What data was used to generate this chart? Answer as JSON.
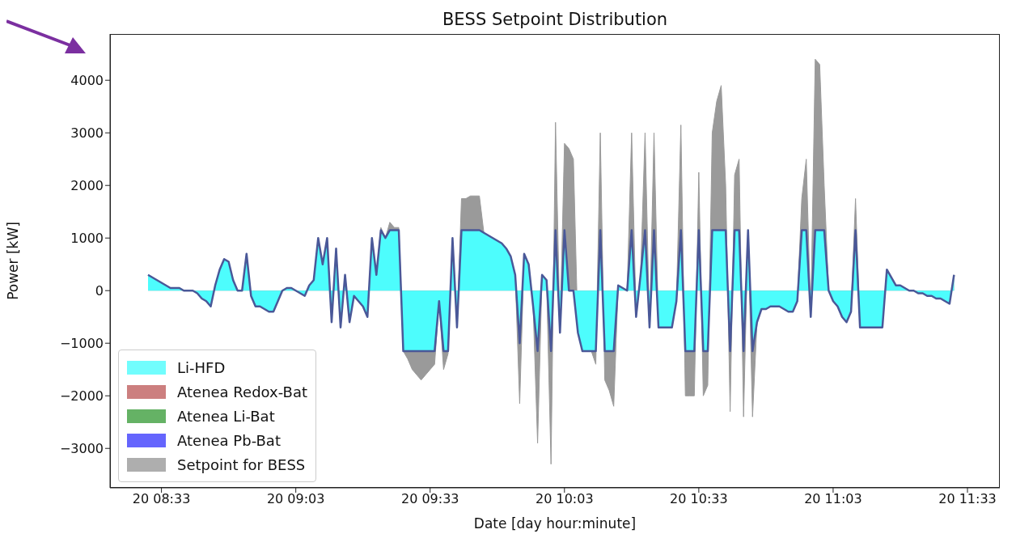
{
  "chart_data": {
    "type": "area",
    "title": "BESS Setpoint Distribution",
    "xlabel": "Date [day hour:minute]",
    "ylabel": "Power [kW]",
    "categories": [
      null,
      null,
      null,
      "20 08:33",
      null,
      null,
      null,
      null,
      null,
      null,
      null,
      null,
      null,
      null,
      null,
      null,
      null,
      null,
      null,
      null,
      null,
      null,
      null,
      null,
      null,
      null,
      null,
      null,
      null,
      null,
      null,
      null,
      null,
      "20 09:03",
      null,
      null,
      null,
      null,
      null,
      null,
      null,
      null,
      null,
      null,
      null,
      null,
      null,
      null,
      null,
      null,
      null,
      null,
      null,
      null,
      null,
      null,
      null,
      null,
      null,
      null,
      null,
      null,
      null,
      "20 09:33",
      null,
      null,
      null,
      null,
      null,
      null,
      null,
      null,
      null,
      null,
      null,
      null,
      null,
      null,
      null,
      null,
      null,
      null,
      null,
      null,
      null,
      null,
      null,
      null,
      null,
      null,
      null,
      null,
      null,
      "20 10:03",
      null,
      null,
      null,
      null,
      null,
      null,
      null,
      null,
      null,
      null,
      null,
      null,
      null,
      null,
      null,
      null,
      null,
      null,
      null,
      null,
      null,
      null,
      null,
      null,
      null,
      null,
      null,
      null,
      null,
      "20 10:33",
      null,
      null,
      null,
      null,
      null,
      null,
      null,
      null,
      null,
      null,
      null,
      null,
      null,
      null,
      null,
      null,
      null,
      null,
      null,
      null,
      null,
      null,
      null,
      null,
      null,
      null,
      null,
      null,
      null,
      "20 11:03",
      null,
      null,
      null,
      null,
      null,
      null,
      null,
      null,
      null,
      null,
      null,
      null,
      null,
      null,
      null,
      null,
      null,
      null,
      null,
      null,
      null,
      null,
      null,
      null,
      null,
      null,
      null,
      null,
      null,
      "20 11:33"
    ],
    "series": [
      {
        "name": "Li-HFD",
        "color": "#4dfdfd",
        "values": [
          300,
          250,
          200,
          150,
          100,
          50,
          50,
          50,
          0,
          0,
          0,
          -50,
          -150,
          -200,
          -300,
          100,
          400,
          600,
          550,
          200,
          0,
          0,
          700,
          -100,
          -300,
          -300,
          -350,
          -400,
          -400,
          -200,
          0,
          50,
          50,
          0,
          -50,
          -100,
          100,
          200,
          1000,
          500,
          1000,
          -600,
          800,
          -700,
          300,
          -600,
          -100,
          -200,
          -300,
          -500,
          1000,
          300,
          1150,
          1000,
          1150,
          1150,
          1150,
          -1150,
          -1150,
          -1150,
          -1150,
          -1150,
          -1150,
          -1150,
          -1150,
          -200,
          -1150,
          -1150,
          1000,
          -700,
          1150,
          1150,
          1150,
          1150,
          1150,
          1100,
          1050,
          1000,
          950,
          900,
          800,
          650,
          300,
          -1000,
          700,
          500,
          -300,
          -1150,
          300,
          200,
          -1150,
          1150,
          -800,
          1150,
          0,
          0,
          -800,
          -1150,
          -1150,
          -1150,
          -1150,
          1150,
          -1150,
          -1150,
          -1150,
          100,
          50,
          0,
          1150,
          -500,
          300,
          1150,
          -700,
          1150,
          -700,
          -700,
          -700,
          -700,
          -200,
          1150,
          -1150,
          -1150,
          -1150,
          1150,
          -1150,
          -1150,
          1150,
          1150,
          1150,
          1150,
          -1150,
          1150,
          1150,
          -1150,
          1150,
          -1150,
          -600,
          -350,
          -350,
          -300,
          -300,
          -300,
          -350,
          -400,
          -400,
          -200,
          1150,
          1150,
          -500,
          1150,
          1150,
          1150,
          0,
          -200,
          -300,
          -500,
          -600,
          -400,
          1150,
          -700,
          -700,
          -700,
          -700,
          -700,
          -700,
          400,
          250,
          100,
          100,
          50,
          0,
          0,
          -50,
          -50,
          -100,
          -100,
          -150,
          -150,
          -200,
          -250,
          300,
          null,
          null,
          null
        ]
      },
      {
        "name": "Atenea Redox-Bat",
        "color": "#bf5f5f",
        "values": [
          null,
          null,
          null,
          null,
          null,
          null,
          null,
          null,
          null,
          null,
          null,
          null,
          null,
          null,
          null,
          null,
          null,
          null,
          null,
          null,
          null,
          null,
          null,
          null,
          null,
          null,
          null,
          null,
          null,
          null,
          null,
          null,
          null,
          null,
          null,
          null,
          null,
          null,
          null,
          null,
          null,
          null,
          null,
          null,
          null,
          null,
          null,
          null,
          null,
          null,
          null,
          null,
          null,
          null,
          null,
          null,
          null,
          null,
          null,
          null,
          null,
          null,
          null,
          null,
          null,
          null,
          null,
          null,
          null,
          null,
          null,
          null,
          null,
          null,
          null,
          null,
          null,
          null,
          null,
          null,
          null,
          null,
          null,
          null,
          null,
          null,
          null,
          null,
          null,
          null,
          null,
          null,
          null,
          null,
          null,
          null,
          null,
          null,
          null,
          null,
          null,
          null,
          null,
          null,
          null,
          null,
          null,
          null,
          null,
          null,
          null,
          null,
          null,
          null,
          null,
          null,
          null,
          null,
          null,
          null,
          null,
          null,
          null,
          null,
          null,
          null,
          null,
          null,
          null,
          null,
          null,
          null,
          null,
          null,
          null,
          null,
          null,
          null,
          null,
          null,
          null,
          null,
          null,
          null,
          null,
          null,
          null,
          null,
          null,
          null,
          null,
          null,
          null,
          null,
          null,
          null,
          null,
          null,
          null,
          null,
          null,
          null,
          null,
          null,
          null,
          null,
          null,
          null,
          null,
          null,
          null,
          null,
          null,
          null,
          null,
          null,
          null,
          null,
          null,
          null,
          null,
          null,
          null,
          null
        ]
      },
      {
        "name": "Atenea Li-Bat",
        "color": "#3f9f3f",
        "values": [
          null,
          null,
          null,
          null,
          null,
          null,
          null,
          null,
          null,
          null,
          null,
          null,
          null,
          null,
          null,
          null,
          null,
          null,
          null,
          null,
          null,
          null,
          null,
          null,
          null,
          null,
          null,
          null,
          null,
          null,
          null,
          null,
          null,
          null,
          null,
          null,
          null,
          null,
          null,
          null,
          null,
          null,
          null,
          null,
          null,
          null,
          null,
          null,
          null,
          null,
          null,
          null,
          null,
          null,
          null,
          null,
          null,
          null,
          null,
          null,
          null,
          null,
          null,
          null,
          null,
          null,
          null,
          null,
          null,
          null,
          null,
          null,
          null,
          null,
          null,
          null,
          null,
          null,
          null,
          null,
          null,
          null,
          null,
          null,
          null,
          null,
          null,
          null,
          null,
          null,
          null,
          null,
          null,
          null,
          null,
          null,
          null,
          null,
          null,
          null,
          null,
          null,
          null,
          null,
          null,
          null,
          null,
          null,
          null,
          null,
          null,
          null,
          null,
          null,
          null,
          null,
          null,
          null,
          null,
          null,
          null,
          null,
          null,
          null,
          null,
          null,
          null,
          null,
          null,
          null,
          null,
          null,
          null,
          null,
          null,
          null,
          null,
          null,
          null,
          null,
          null,
          null,
          null,
          null,
          null,
          null,
          null,
          null,
          null,
          null,
          null,
          null,
          null,
          null,
          null,
          null,
          null,
          null,
          null,
          null,
          null,
          null,
          null,
          null,
          null,
          null,
          null,
          null,
          null,
          null,
          null,
          null,
          null,
          null,
          null,
          null,
          null,
          null,
          null,
          null,
          null,
          null,
          null,
          null
        ]
      },
      {
        "name": "Atenea Pb-Bat",
        "color": "#3f3ffd",
        "values": [
          null,
          null,
          null,
          null,
          null,
          null,
          null,
          null,
          null,
          null,
          null,
          null,
          null,
          null,
          null,
          null,
          null,
          null,
          null,
          null,
          null,
          null,
          null,
          null,
          null,
          null,
          null,
          null,
          null,
          null,
          null,
          null,
          null,
          null,
          null,
          null,
          null,
          null,
          null,
          null,
          null,
          null,
          null,
          null,
          null,
          null,
          null,
          null,
          null,
          null,
          null,
          null,
          null,
          null,
          null,
          null,
          null,
          null,
          null,
          null,
          null,
          null,
          null,
          null,
          null,
          null,
          null,
          null,
          null,
          null,
          null,
          null,
          null,
          null,
          null,
          null,
          null,
          null,
          null,
          null,
          null,
          null,
          null,
          null,
          null,
          null,
          null,
          null,
          null,
          null,
          null,
          null,
          null,
          null,
          null,
          null,
          null,
          null,
          null,
          null,
          null,
          null,
          null,
          null,
          null,
          null,
          null,
          null,
          null,
          null,
          null,
          null,
          null,
          null,
          null,
          null,
          null,
          null,
          null,
          null,
          null,
          null,
          null,
          null,
          null,
          null,
          null,
          null,
          null,
          null,
          null,
          null,
          null,
          null,
          null,
          null,
          null,
          null,
          null,
          null,
          null,
          null,
          null,
          null,
          null,
          null,
          null,
          null,
          null,
          null,
          null,
          null,
          null,
          null,
          null,
          null,
          null,
          null,
          null,
          null,
          null,
          null,
          null,
          null,
          null,
          null,
          null,
          null,
          null,
          null,
          null,
          null,
          null,
          null,
          null,
          null,
          null,
          null,
          null,
          null,
          null,
          null,
          null,
          null
        ]
      },
      {
        "name": "Setpoint for BESS",
        "color": "#9a9a9a",
        "values": [
          300,
          250,
          200,
          150,
          100,
          50,
          50,
          50,
          0,
          0,
          0,
          -50,
          -150,
          -200,
          -300,
          100,
          400,
          600,
          550,
          200,
          0,
          0,
          700,
          -100,
          -300,
          -300,
          -350,
          -400,
          -400,
          -200,
          0,
          50,
          50,
          0,
          -50,
          -100,
          100,
          200,
          1000,
          500,
          1000,
          -600,
          800,
          -700,
          300,
          -600,
          -100,
          -200,
          -300,
          -500,
          1000,
          300,
          1200,
          1000,
          1300,
          1200,
          1200,
          -1150,
          -1300,
          -1500,
          -1600,
          -1700,
          -1600,
          -1500,
          -1400,
          -200,
          -1500,
          -1200,
          1000,
          -700,
          1750,
          1750,
          1800,
          1800,
          1800,
          1100,
          1050,
          1000,
          950,
          900,
          800,
          650,
          300,
          -2150,
          700,
          500,
          -300,
          -2900,
          300,
          200,
          -3300,
          3200,
          -800,
          2800,
          2700,
          2500,
          -800,
          -1150,
          -1150,
          -1150,
          -1400,
          3000,
          -1700,
          -1900,
          -2200,
          100,
          50,
          0,
          3000,
          -500,
          300,
          3000,
          -700,
          3000,
          -700,
          -700,
          -700,
          -700,
          -200,
          3150,
          -2000,
          -2000,
          -2000,
          2250,
          -2000,
          -1800,
          3000,
          3600,
          3900,
          2000,
          -2300,
          2200,
          2500,
          -2400,
          1150,
          -2400,
          -600,
          -350,
          -350,
          -300,
          -300,
          -300,
          -350,
          -400,
          -400,
          -200,
          1750,
          2500,
          -500,
          4400,
          4300,
          2000,
          0,
          -200,
          -300,
          -500,
          -600,
          -400,
          1750,
          -700,
          -700,
          -700,
          -700,
          -700,
          -700,
          400,
          250,
          100,
          100,
          50,
          0,
          0,
          -50,
          -50,
          -100,
          -100,
          -150,
          -150,
          -200,
          -250,
          300,
          null,
          null,
          null
        ]
      }
    ],
    "ylim": [
      -3750,
      4880
    ],
    "yticks": [
      -3000,
      -2000,
      -1000,
      0,
      1000,
      2000,
      3000,
      4000
    ],
    "legend": "bottom left"
  }
}
